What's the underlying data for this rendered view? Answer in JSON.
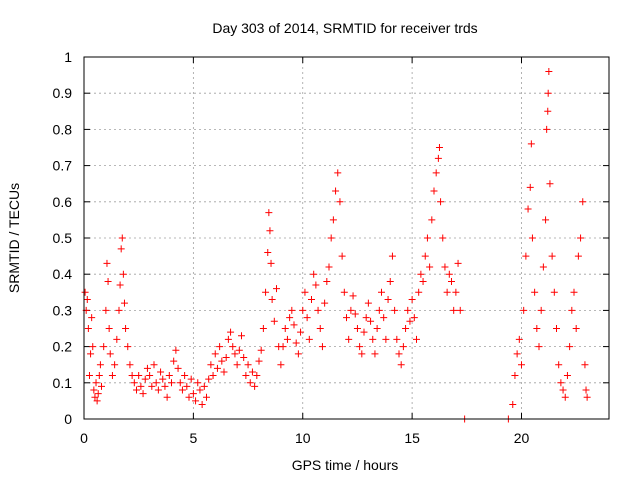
{
  "chart_data": {
    "type": "scatter",
    "title": "Day 303 of 2014, SRMTID for receiver trds",
    "xlabel": "GPS time / hours",
    "ylabel": "SRMTID / TECUs",
    "xlim": [
      0,
      24
    ],
    "ylim": [
      0,
      1
    ],
    "xticks": [
      0,
      5,
      10,
      15,
      20
    ],
    "xtick_labels": [
      "0",
      "5",
      "10",
      "15",
      "20"
    ],
    "yticks": [
      0,
      0.1,
      0.2,
      0.3,
      0.4,
      0.5,
      0.6,
      0.7,
      0.8,
      0.9,
      1
    ],
    "ytick_labels": [
      "0",
      "0.1",
      "0.2",
      "0.3",
      "0.4",
      "0.5",
      "0.6",
      "0.7",
      "0.8",
      "0.9",
      "1"
    ],
    "grid": true,
    "marker": "+",
    "series": [
      {
        "name": "SRMTID",
        "color": "#ff0000",
        "points": [
          [
            0.05,
            0.35
          ],
          [
            0.1,
            0.3
          ],
          [
            0.15,
            0.33
          ],
          [
            0.2,
            0.25
          ],
          [
            0.25,
            0.12
          ],
          [
            0.3,
            0.18
          ],
          [
            0.35,
            0.28
          ],
          [
            0.4,
            0.2
          ],
          [
            0.45,
            0.08
          ],
          [
            0.5,
            0.06
          ],
          [
            0.55,
            0.1
          ],
          [
            0.6,
            0.05
          ],
          [
            0.65,
            0.07
          ],
          [
            0.7,
            0.12
          ],
          [
            0.75,
            0.15
          ],
          [
            0.8,
            0.09
          ],
          [
            0.9,
            0.2
          ],
          [
            1.0,
            0.3
          ],
          [
            1.05,
            0.43
          ],
          [
            1.1,
            0.38
          ],
          [
            1.15,
            0.25
          ],
          [
            1.2,
            0.18
          ],
          [
            1.3,
            0.12
          ],
          [
            1.4,
            0.15
          ],
          [
            1.5,
            0.22
          ],
          [
            1.6,
            0.3
          ],
          [
            1.65,
            0.37
          ],
          [
            1.7,
            0.47
          ],
          [
            1.75,
            0.5
          ],
          [
            1.8,
            0.4
          ],
          [
            1.85,
            0.32
          ],
          [
            1.9,
            0.25
          ],
          [
            2.0,
            0.2
          ],
          [
            2.1,
            0.15
          ],
          [
            2.2,
            0.12
          ],
          [
            2.3,
            0.1
          ],
          [
            2.4,
            0.08
          ],
          [
            2.5,
            0.12
          ],
          [
            2.6,
            0.09
          ],
          [
            2.7,
            0.07
          ],
          [
            2.8,
            0.11
          ],
          [
            2.9,
            0.14
          ],
          [
            3.0,
            0.12
          ],
          [
            3.1,
            0.09
          ],
          [
            3.2,
            0.15
          ],
          [
            3.3,
            0.1
          ],
          [
            3.4,
            0.08
          ],
          [
            3.5,
            0.13
          ],
          [
            3.6,
            0.11
          ],
          [
            3.7,
            0.09
          ],
          [
            3.8,
            0.06
          ],
          [
            3.9,
            0.12
          ],
          [
            4.0,
            0.1
          ],
          [
            4.1,
            0.16
          ],
          [
            4.2,
            0.19
          ],
          [
            4.3,
            0.14
          ],
          [
            4.4,
            0.1
          ],
          [
            4.5,
            0.08
          ],
          [
            4.6,
            0.12
          ],
          [
            4.7,
            0.09
          ],
          [
            4.8,
            0.06
          ],
          [
            4.9,
            0.11
          ],
          [
            5.0,
            0.07
          ],
          [
            5.1,
            0.05
          ],
          [
            5.2,
            0.1
          ],
          [
            5.3,
            0.08
          ],
          [
            5.4,
            0.04
          ],
          [
            5.5,
            0.09
          ],
          [
            5.6,
            0.06
          ],
          [
            5.7,
            0.11
          ],
          [
            5.8,
            0.15
          ],
          [
            5.9,
            0.12
          ],
          [
            6.0,
            0.18
          ],
          [
            6.1,
            0.14
          ],
          [
            6.2,
            0.2
          ],
          [
            6.3,
            0.16
          ],
          [
            6.4,
            0.13
          ],
          [
            6.5,
            0.17
          ],
          [
            6.6,
            0.22
          ],
          [
            6.7,
            0.24
          ],
          [
            6.8,
            0.2
          ],
          [
            6.9,
            0.18
          ],
          [
            7.0,
            0.15
          ],
          [
            7.1,
            0.19
          ],
          [
            7.2,
            0.23
          ],
          [
            7.3,
            0.17
          ],
          [
            7.4,
            0.12
          ],
          [
            7.5,
            0.15
          ],
          [
            7.6,
            0.1
          ],
          [
            7.7,
            0.13
          ],
          [
            7.8,
            0.09
          ],
          [
            7.9,
            0.12
          ],
          [
            8.0,
            0.16
          ],
          [
            8.1,
            0.19
          ],
          [
            8.2,
            0.25
          ],
          [
            8.3,
            0.35
          ],
          [
            8.4,
            0.46
          ],
          [
            8.45,
            0.57
          ],
          [
            8.5,
            0.52
          ],
          [
            8.55,
            0.43
          ],
          [
            8.6,
            0.33
          ],
          [
            8.7,
            0.27
          ],
          [
            8.8,
            0.36
          ],
          [
            8.9,
            0.2
          ],
          [
            9.0,
            0.15
          ],
          [
            9.1,
            0.2
          ],
          [
            9.2,
            0.25
          ],
          [
            9.3,
            0.22
          ],
          [
            9.4,
            0.28
          ],
          [
            9.5,
            0.3
          ],
          [
            9.6,
            0.26
          ],
          [
            9.7,
            0.21
          ],
          [
            9.8,
            0.18
          ],
          [
            9.9,
            0.24
          ],
          [
            10.0,
            0.3
          ],
          [
            10.1,
            0.35
          ],
          [
            10.2,
            0.28
          ],
          [
            10.3,
            0.22
          ],
          [
            10.4,
            0.33
          ],
          [
            10.5,
            0.4
          ],
          [
            10.6,
            0.37
          ],
          [
            10.7,
            0.3
          ],
          [
            10.8,
            0.25
          ],
          [
            10.9,
            0.2
          ],
          [
            11.0,
            0.32
          ],
          [
            11.1,
            0.38
          ],
          [
            11.2,
            0.42
          ],
          [
            11.3,
            0.5
          ],
          [
            11.4,
            0.55
          ],
          [
            11.5,
            0.63
          ],
          [
            11.6,
            0.68
          ],
          [
            11.7,
            0.6
          ],
          [
            11.8,
            0.45
          ],
          [
            11.9,
            0.35
          ],
          [
            12.0,
            0.28
          ],
          [
            12.1,
            0.22
          ],
          [
            12.2,
            0.3
          ],
          [
            12.3,
            0.34
          ],
          [
            12.4,
            0.29
          ],
          [
            12.5,
            0.25
          ],
          [
            12.6,
            0.2
          ],
          [
            12.7,
            0.18
          ],
          [
            12.8,
            0.24
          ],
          [
            12.9,
            0.28
          ],
          [
            13.0,
            0.32
          ],
          [
            13.1,
            0.27
          ],
          [
            13.2,
            0.22
          ],
          [
            13.3,
            0.18
          ],
          [
            13.4,
            0.25
          ],
          [
            13.5,
            0.3
          ],
          [
            13.6,
            0.35
          ],
          [
            13.7,
            0.28
          ],
          [
            13.8,
            0.22
          ],
          [
            13.9,
            0.33
          ],
          [
            14.0,
            0.38
          ],
          [
            14.1,
            0.45
          ],
          [
            14.2,
            0.3
          ],
          [
            14.3,
            0.22
          ],
          [
            14.4,
            0.18
          ],
          [
            14.5,
            0.15
          ],
          [
            14.6,
            0.2
          ],
          [
            14.7,
            0.25
          ],
          [
            14.8,
            0.3
          ],
          [
            14.9,
            0.27
          ],
          [
            15.0,
            0.33
          ],
          [
            15.1,
            0.28
          ],
          [
            15.2,
            0.22
          ],
          [
            15.3,
            0.35
          ],
          [
            15.4,
            0.4
          ],
          [
            15.5,
            0.38
          ],
          [
            15.6,
            0.45
          ],
          [
            15.7,
            0.5
          ],
          [
            15.8,
            0.42
          ],
          [
            15.9,
            0.55
          ],
          [
            16.0,
            0.63
          ],
          [
            16.1,
            0.68
          ],
          [
            16.2,
            0.72
          ],
          [
            16.25,
            0.75
          ],
          [
            16.3,
            0.6
          ],
          [
            16.4,
            0.5
          ],
          [
            16.5,
            0.42
          ],
          [
            16.6,
            0.35
          ],
          [
            16.7,
            0.4
          ],
          [
            16.8,
            0.38
          ],
          [
            16.9,
            0.3
          ],
          [
            17.0,
            0.35
          ],
          [
            17.1,
            0.43
          ],
          [
            17.2,
            0.3
          ],
          [
            17.4,
            0.0
          ],
          [
            19.4,
            0.0
          ],
          [
            19.6,
            0.04
          ],
          [
            19.7,
            0.12
          ],
          [
            19.8,
            0.18
          ],
          [
            19.9,
            0.22
          ],
          [
            20.0,
            0.15
          ],
          [
            20.1,
            0.3
          ],
          [
            20.2,
            0.45
          ],
          [
            20.3,
            0.58
          ],
          [
            20.4,
            0.64
          ],
          [
            20.45,
            0.76
          ],
          [
            20.5,
            0.5
          ],
          [
            20.6,
            0.35
          ],
          [
            20.7,
            0.25
          ],
          [
            20.8,
            0.2
          ],
          [
            20.9,
            0.3
          ],
          [
            21.0,
            0.42
          ],
          [
            21.1,
            0.55
          ],
          [
            21.15,
            0.8
          ],
          [
            21.2,
            0.85
          ],
          [
            21.22,
            0.9
          ],
          [
            21.25,
            0.96
          ],
          [
            21.3,
            0.65
          ],
          [
            21.4,
            0.45
          ],
          [
            21.5,
            0.35
          ],
          [
            21.6,
            0.25
          ],
          [
            21.7,
            0.15
          ],
          [
            21.8,
            0.1
          ],
          [
            21.9,
            0.08
          ],
          [
            22.0,
            0.06
          ],
          [
            22.1,
            0.12
          ],
          [
            22.2,
            0.2
          ],
          [
            22.3,
            0.3
          ],
          [
            22.4,
            0.35
          ],
          [
            22.5,
            0.25
          ],
          [
            22.6,
            0.45
          ],
          [
            22.7,
            0.5
          ],
          [
            22.8,
            0.6
          ],
          [
            22.9,
            0.15
          ],
          [
            22.95,
            0.08
          ],
          [
            23.0,
            0.06
          ]
        ]
      }
    ]
  }
}
